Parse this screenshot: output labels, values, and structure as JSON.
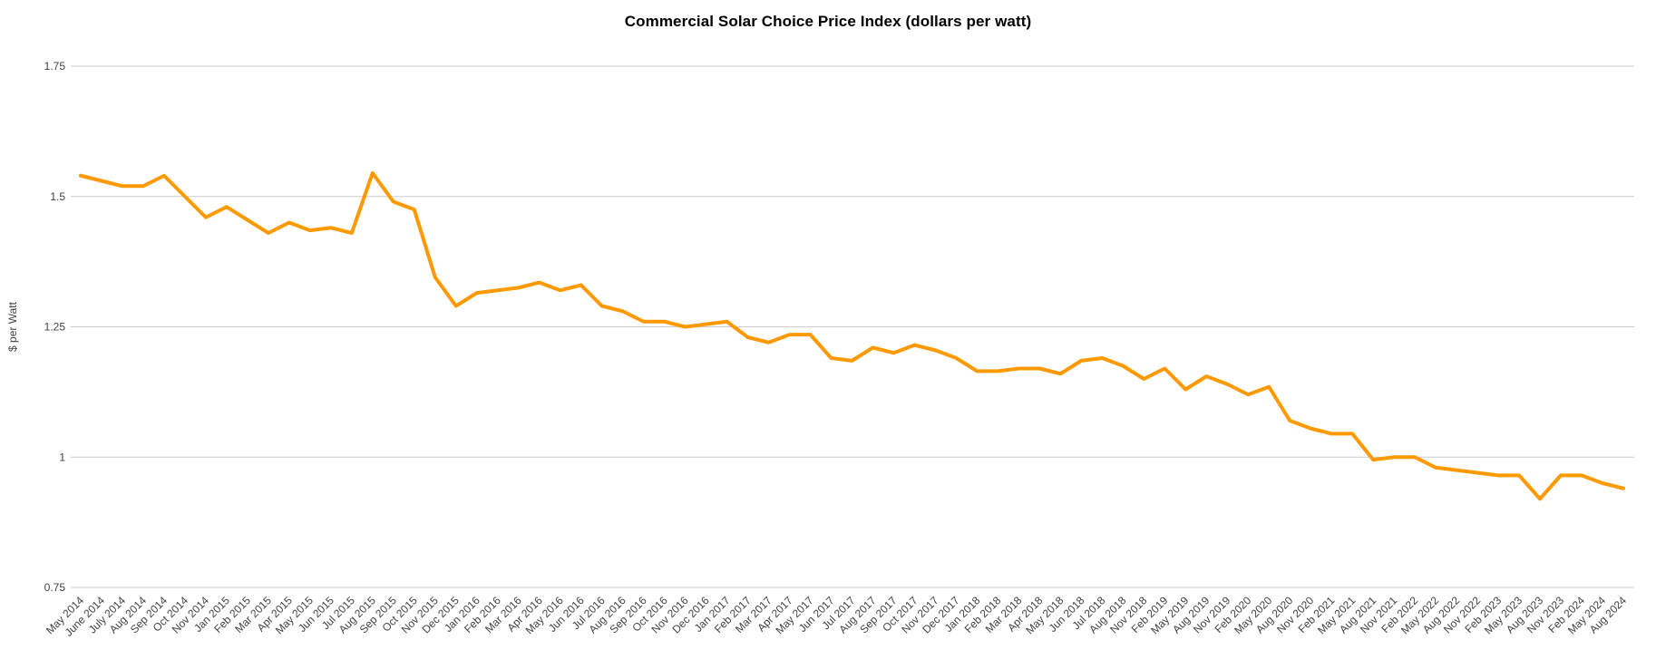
{
  "chart_data": {
    "type": "line",
    "title": "Commercial Solar Choice Price Index (dollars per watt)",
    "xlabel": "",
    "ylabel": "$ per Watt",
    "ylim": [
      0.75,
      1.75
    ],
    "yticks": [
      0.75,
      1.0,
      1.25,
      1.5,
      1.75
    ],
    "ytick_labels": [
      "0.75",
      "1",
      "1.25",
      "1.5",
      "1.75"
    ],
    "grid": "horizontal-only",
    "legend": "none",
    "x_label_rotation": -45,
    "categories": [
      "May 2014",
      "June 2014",
      "July 2014",
      "Aug 2014",
      "Sep 2014",
      "Oct 2014",
      "Nov 2014",
      "Jan 2015",
      "Feb 2015",
      "Mar 2015",
      "Apr 2015",
      "May 2015",
      "Jun 2015",
      "Jul 2015",
      "Aug 2015",
      "Sep 2015",
      "Oct 2015",
      "Nov 2015",
      "Dec 2015",
      "Jan 2016",
      "Feb 2016",
      "Mar 2016",
      "Apr 2016",
      "May 2016",
      "Jun 2016",
      "Jul 2016",
      "Aug 2016",
      "Sep 2016",
      "Oct 2016",
      "Nov 2016",
      "Dec 2016",
      "Jan 2017",
      "Feb 2017",
      "Mar 2017",
      "Apr 2017",
      "May 2017",
      "Jun 2017",
      "Jul 2017",
      "Aug 2017",
      "Sep 2017",
      "Oct 2017",
      "Nov 2017",
      "Dec 2017",
      "Jan 2018",
      "Feb 2018",
      "Mar 2018",
      "Apr 2018",
      "May 2018",
      "Jun 2018",
      "Jul 2018",
      "Aug 2018",
      "Nov 2018",
      "Feb 2019",
      "May 2019",
      "Aug 2019",
      "Nov 2019",
      "Feb 2020",
      "May 2020",
      "Aug 2020",
      "Nov 2020",
      "Feb 2021",
      "May 2021",
      "Aug 2021",
      "Nov 2021",
      "Feb 2022",
      "May 2022",
      "Aug 2022",
      "Nov 2022",
      "Feb 2023",
      "May 2023",
      "Aug 2023",
      "Nov 2023",
      "Feb 2024",
      "May 2024",
      "Aug 2024"
    ],
    "series": [
      {
        "name": "Commercial Solar Choice Price Index",
        "color": "#FF9900",
        "values": [
          1.54,
          1.53,
          1.52,
          1.52,
          1.54,
          1.5,
          1.46,
          1.48,
          1.455,
          1.43,
          1.45,
          1.435,
          1.44,
          1.43,
          1.545,
          1.49,
          1.475,
          1.345,
          1.29,
          1.315,
          1.32,
          1.325,
          1.335,
          1.32,
          1.33,
          1.29,
          1.28,
          1.26,
          1.26,
          1.25,
          1.255,
          1.26,
          1.23,
          1.22,
          1.235,
          1.235,
          1.19,
          1.185,
          1.21,
          1.2,
          1.215,
          1.205,
          1.19,
          1.165,
          1.165,
          1.17,
          1.17,
          1.16,
          1.185,
          1.19,
          1.175,
          1.15,
          1.17,
          1.13,
          1.155,
          1.14,
          1.12,
          1.135,
          1.07,
          1.055,
          1.045,
          1.045,
          0.995,
          1.0,
          1.0,
          0.98,
          0.975,
          0.97,
          0.965,
          0.965,
          0.92,
          0.965,
          0.965,
          0.95,
          0.94
        ]
      }
    ]
  },
  "colors": {
    "background": "#ffffff",
    "line": "#FF9900",
    "grid": "#cccccc",
    "axis_text": "#424242",
    "title_text": "#000000"
  }
}
